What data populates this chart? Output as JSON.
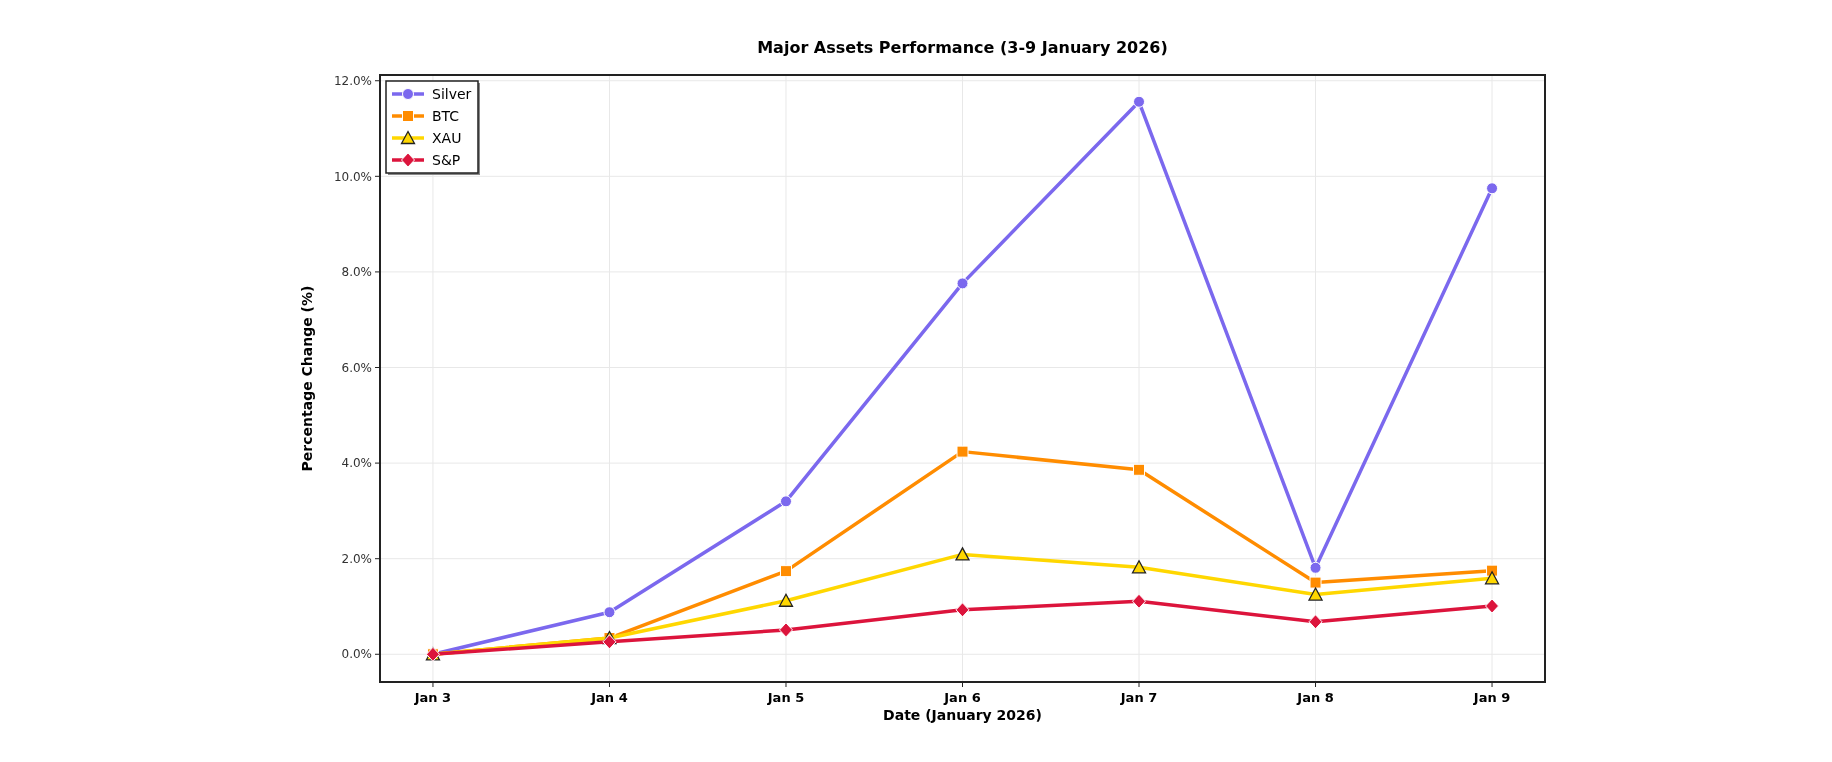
{
  "chart_data": {
    "type": "line",
    "title": "Major Assets Performance (3-9 January 2026)",
    "xlabel": "Date (January 2026)",
    "ylabel": "Percentage Change (%)",
    "categories": [
      "Jan 3",
      "Jan 4",
      "Jan 5",
      "Jan 6",
      "Jan 7",
      "Jan 8",
      "Jan 9"
    ],
    "series": [
      {
        "name": "Silver",
        "color": "#7b68ee",
        "marker": "circle",
        "values": [
          0,
          0.88,
          3.2,
          7.76,
          11.56,
          1.81,
          9.75
        ]
      },
      {
        "name": "BTC",
        "color": "#ff8c00",
        "marker": "square",
        "values": [
          0,
          0.34,
          1.74,
          4.24,
          3.86,
          1.5,
          1.75
        ]
      },
      {
        "name": "XAU",
        "color": "#ffd700",
        "marker": "triangle",
        "values": [
          0,
          0.34,
          1.12,
          2.09,
          1.82,
          1.25,
          1.59
        ]
      },
      {
        "name": "S&P",
        "color": "#dc143c",
        "marker": "diamond",
        "values": [
          0,
          0.26,
          0.51,
          0.93,
          1.11,
          0.68,
          1.01
        ]
      }
    ],
    "ylim": [
      -0.58,
      12.12
    ],
    "yticks": [
      {
        "value": 0,
        "label": "0.0%"
      },
      {
        "value": 2,
        "label": "2.0%"
      },
      {
        "value": 4,
        "label": "4.0%"
      },
      {
        "value": 6,
        "label": "6.0%"
      },
      {
        "value": 8,
        "label": "8.0%"
      },
      {
        "value": 10,
        "label": "10.0%"
      },
      {
        "value": 12,
        "label": "12.0%"
      }
    ],
    "grid": true,
    "legend": "top left",
    "line_style": "solid"
  }
}
